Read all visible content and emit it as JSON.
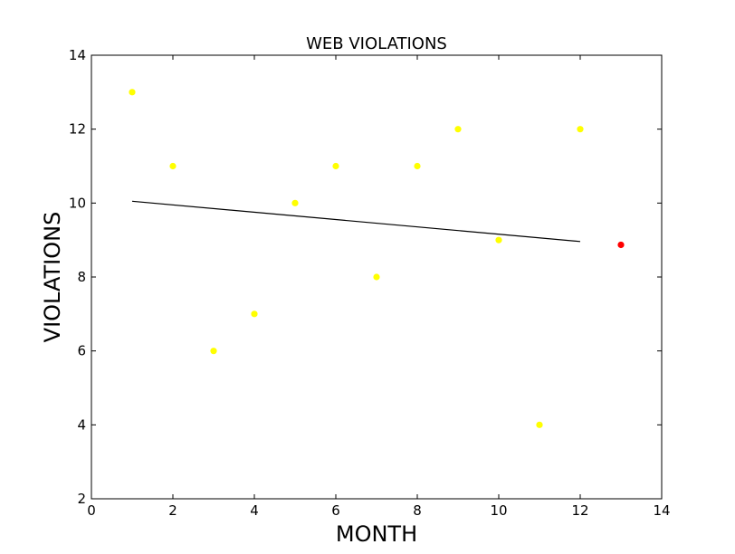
{
  "chart_data": {
    "type": "scatter",
    "title": "WEB VIOLATIONS",
    "xlabel": "MONTH",
    "ylabel": "VIOLATIONS",
    "xlim": [
      0,
      14
    ],
    "ylim": [
      2,
      14
    ],
    "xticks": [
      0,
      2,
      4,
      6,
      8,
      10,
      12,
      14
    ],
    "yticks": [
      2,
      4,
      6,
      8,
      10,
      12,
      14
    ],
    "grid": false,
    "legend": "none",
    "series": [
      {
        "kind": "points",
        "color": "#ffff00",
        "points": [
          {
            "x": 1,
            "y": 13
          },
          {
            "x": 2,
            "y": 11
          },
          {
            "x": 3,
            "y": 6
          },
          {
            "x": 4,
            "y": 7
          },
          {
            "x": 5,
            "y": 10
          },
          {
            "x": 6,
            "y": 11
          },
          {
            "x": 7,
            "y": 8
          },
          {
            "x": 8,
            "y": 11
          },
          {
            "x": 9,
            "y": 12
          },
          {
            "x": 10,
            "y": 9
          },
          {
            "x": 11,
            "y": 4
          },
          {
            "x": 12,
            "y": 12
          }
        ]
      },
      {
        "kind": "line",
        "color": "#000000",
        "points": [
          {
            "x": 1,
            "y": 10.05
          },
          {
            "x": 12,
            "y": 8.96
          }
        ]
      },
      {
        "kind": "points",
        "color": "#ff0000",
        "points": [
          {
            "x": 13,
            "y": 8.87
          }
        ]
      }
    ]
  }
}
